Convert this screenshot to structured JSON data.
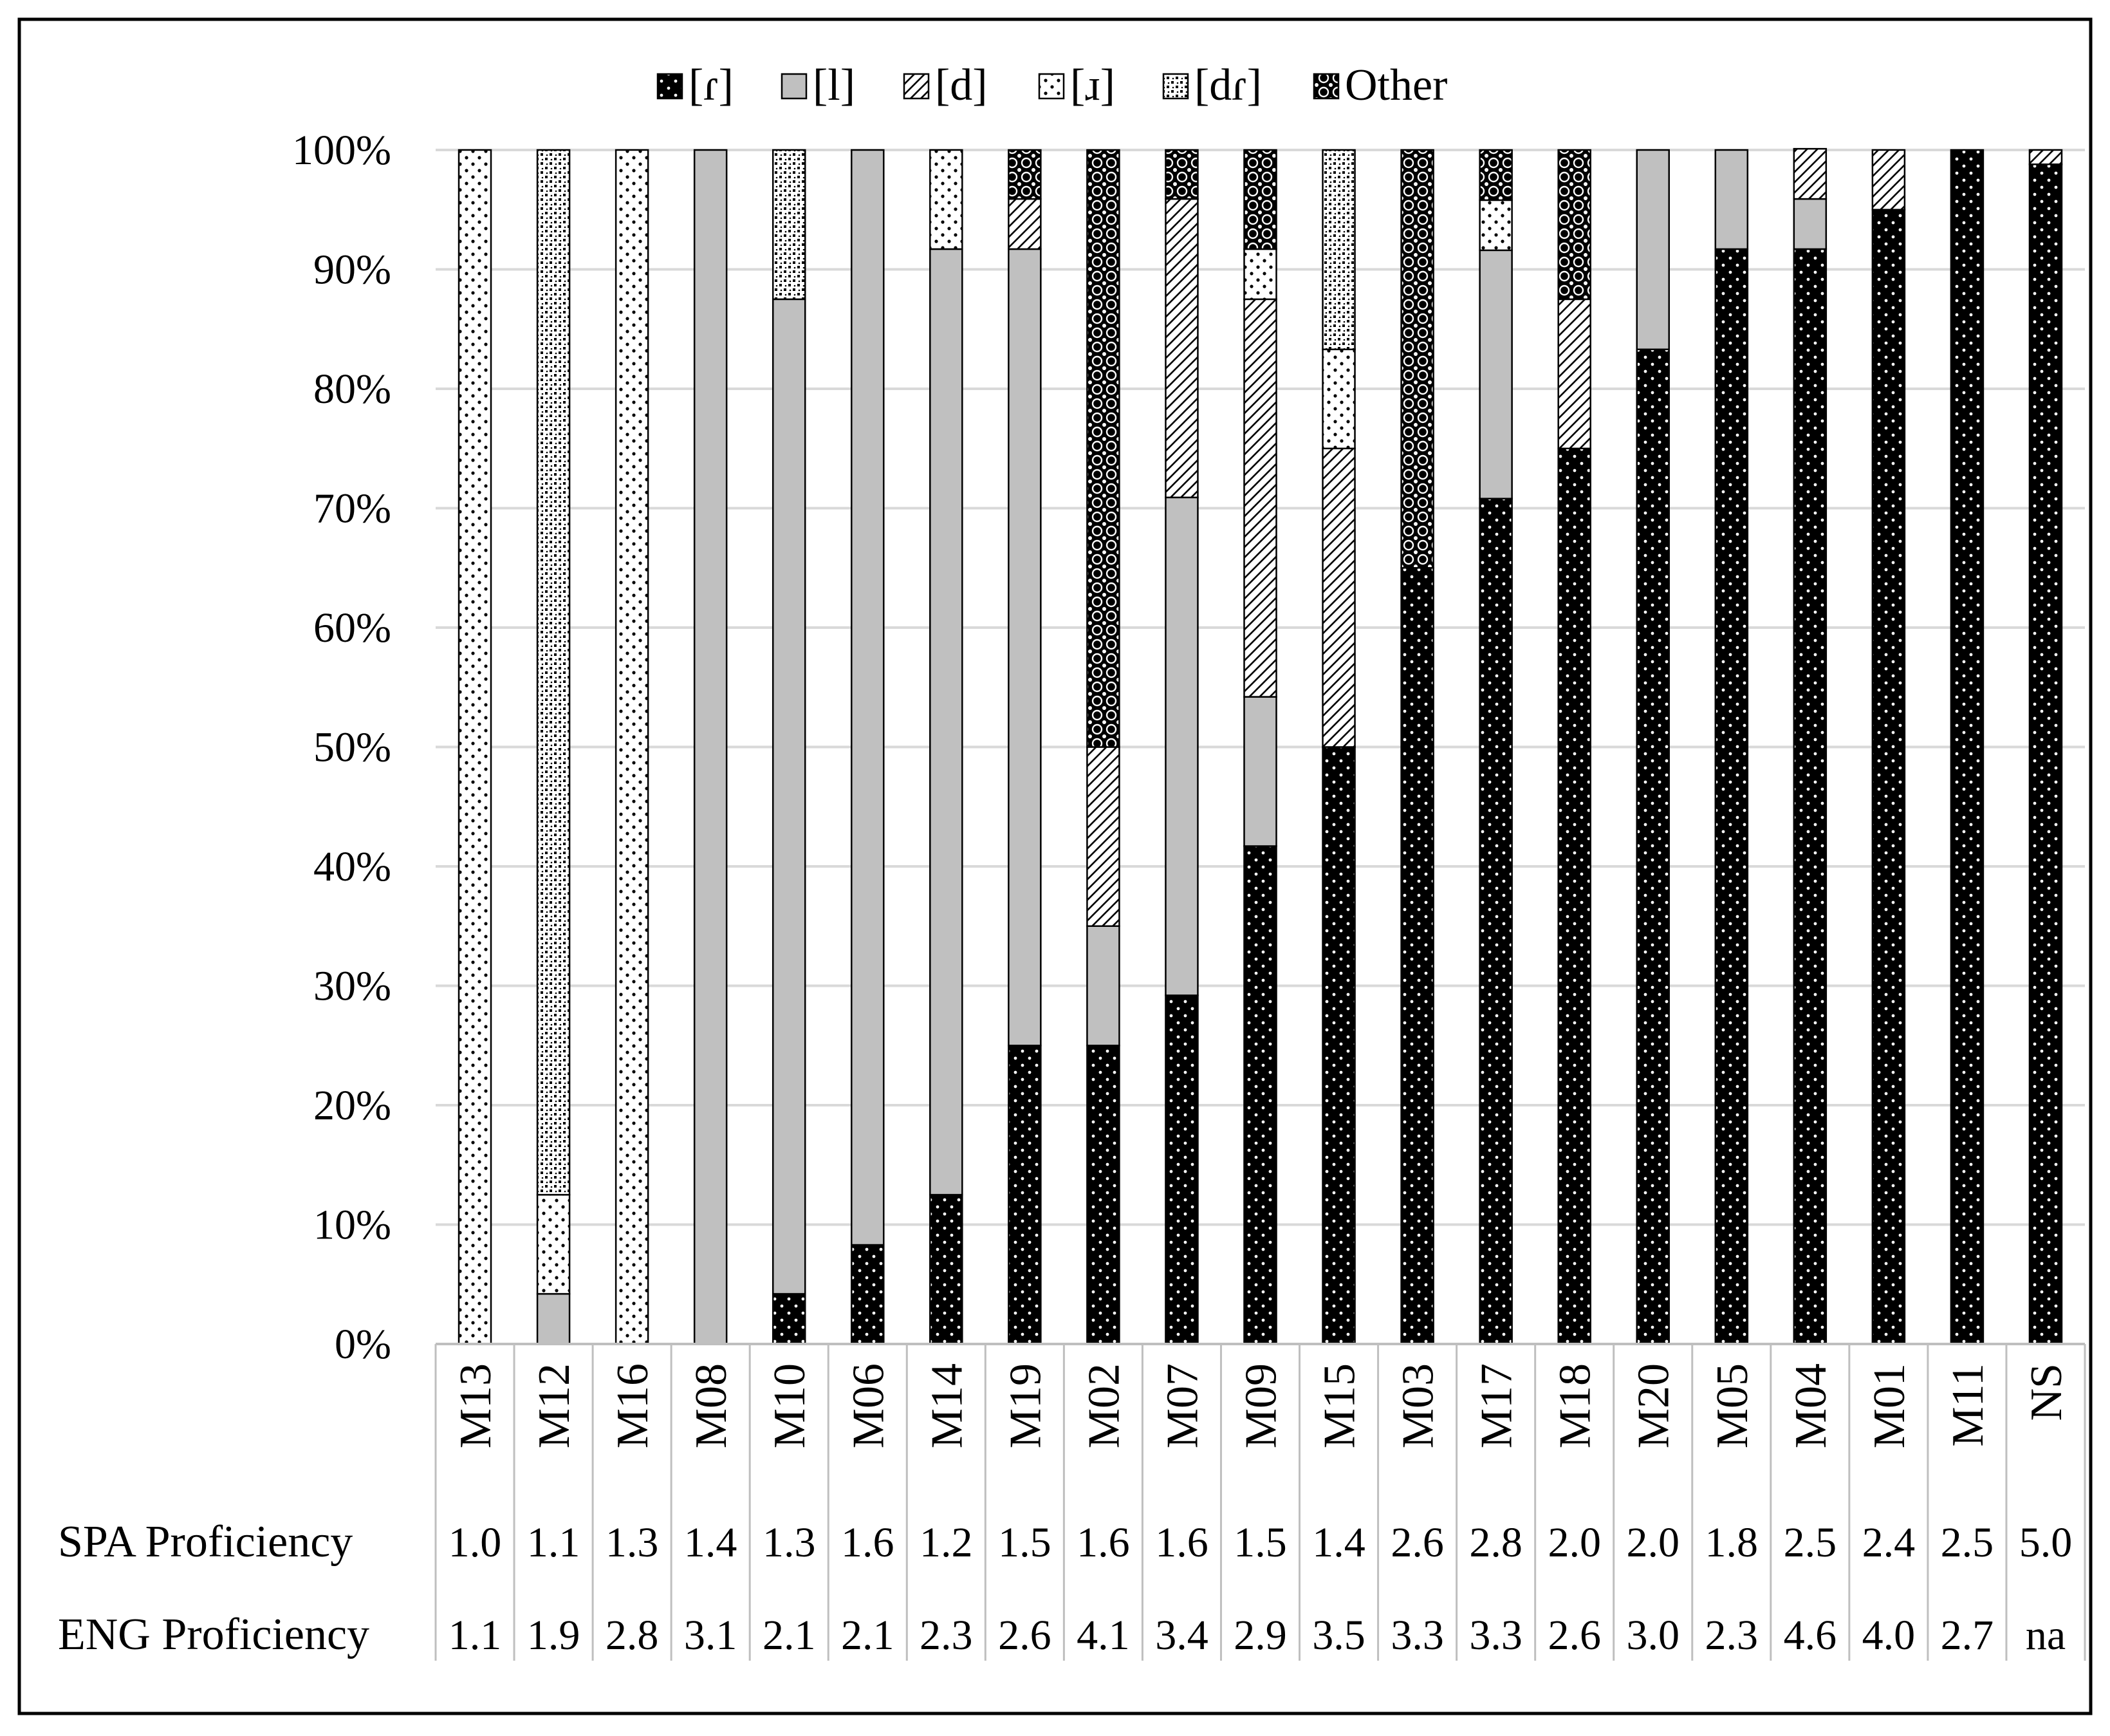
{
  "chart_data": {
    "type": "bar",
    "stacked": true,
    "title": "",
    "xlabel": "",
    "ylabel": "",
    "ylim": [
      0,
      100
    ],
    "y_tick_labels": [
      "0%",
      "10%",
      "20%",
      "30%",
      "40%",
      "50%",
      "60%",
      "70%",
      "80%",
      "90%",
      "100%"
    ],
    "grid": "horizontal",
    "legend_position": "top",
    "categories": [
      "M13",
      "M12",
      "M16",
      "M08",
      "M10",
      "M06",
      "M14",
      "M19",
      "M02",
      "M07",
      "M09",
      "M15",
      "M03",
      "M17",
      "M18",
      "M20",
      "M05",
      "M04",
      "M01",
      "M11",
      "NS"
    ],
    "series": [
      {
        "name": "[ɾ]",
        "pattern": "black-dots",
        "values": [
          0,
          0,
          0,
          0,
          4.2,
          8.3,
          12.5,
          25,
          25,
          29.2,
          41.7,
          50,
          65,
          70.8,
          75,
          83.3,
          91.7,
          91.7,
          95,
          100,
          98.8
        ]
      },
      {
        "name": "[l]",
        "pattern": "gray",
        "values": [
          0,
          4.2,
          0,
          100,
          83.3,
          91.7,
          79.2,
          66.7,
          10,
          41.7,
          12.5,
          0,
          0,
          20.8,
          0,
          16.7,
          8.3,
          4.2,
          0,
          0,
          0
        ]
      },
      {
        "name": "[d]",
        "pattern": "diagonal",
        "values": [
          0,
          0,
          0,
          0,
          0,
          0,
          0,
          4.2,
          15,
          25,
          33.3,
          25,
          0,
          0,
          12.5,
          0,
          0,
          4.2,
          5,
          0,
          1.2
        ]
      },
      {
        "name": "[ɹ]",
        "pattern": "white-dots",
        "values": [
          100,
          8.3,
          100,
          0,
          0,
          0,
          8.3,
          0,
          0,
          0,
          4.2,
          8.3,
          0,
          4.2,
          0,
          0,
          0,
          0,
          0,
          0,
          0
        ]
      },
      {
        "name": "[dɾ]",
        "pattern": "checker",
        "values": [
          0,
          87.5,
          0,
          0,
          12.5,
          0,
          0,
          0,
          0,
          0,
          0,
          16.7,
          0,
          0,
          0,
          0,
          0,
          0,
          0,
          0,
          0
        ]
      },
      {
        "name": "Other",
        "pattern": "circles",
        "values": [
          0,
          0,
          0,
          0,
          0,
          0,
          0,
          4.1,
          50,
          4.1,
          8.3,
          0,
          35,
          4.2,
          12.5,
          0,
          0,
          0,
          0,
          0,
          0
        ]
      }
    ],
    "table": [
      {
        "label": "SPA Proficiency",
        "values": [
          "1.0",
          "1.1",
          "1.3",
          "1.4",
          "1.3",
          "1.6",
          "1.2",
          "1.5",
          "1.6",
          "1.6",
          "1.5",
          "1.4",
          "2.6",
          "2.8",
          "2.0",
          "2.0",
          "1.8",
          "2.5",
          "2.4",
          "2.5",
          "5.0"
        ]
      },
      {
        "label": "ENG Proficiency",
        "values": [
          "1.1",
          "1.9",
          "2.8",
          "3.1",
          "2.1",
          "2.1",
          "2.3",
          "2.6",
          "4.1",
          "3.4",
          "2.9",
          "3.5",
          "3.3",
          "3.3",
          "2.6",
          "3.0",
          "2.3",
          "4.6",
          "4.0",
          "2.7",
          "na"
        ]
      }
    ]
  }
}
